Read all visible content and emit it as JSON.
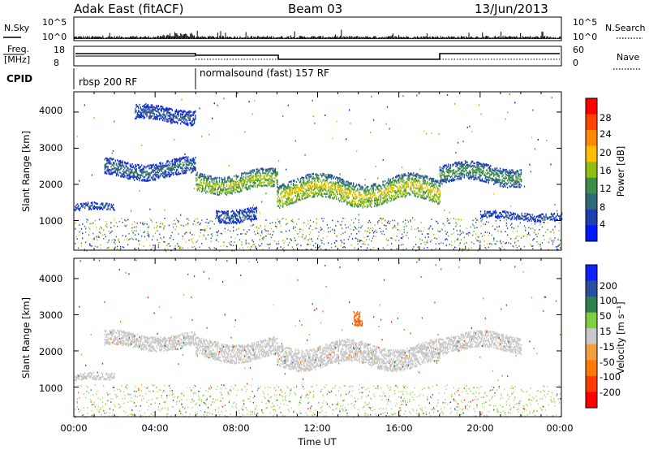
{
  "header": {
    "station": "Adak East (fitACF)",
    "beam": "Beam 03",
    "date": "13/Jun/2013"
  },
  "top_strip": {
    "left_label": "N.Sky",
    "left_ticks": [
      "10^5",
      "10^0"
    ],
    "right_ticks": [
      "10^5",
      "10^0"
    ],
    "right_label": "N.Search"
  },
  "freq_strip": {
    "left_label_line1": "Freq.",
    "left_label_line2": "[MHz]",
    "left_ticks": [
      "18",
      "8"
    ],
    "right_ticks": [
      "60",
      "0"
    ],
    "right_label": "Nave"
  },
  "cpid_strip": {
    "label": "CPID",
    "segments": [
      "rbsp 200 RF",
      "normalsound (fast) 157 RF"
    ]
  },
  "power_panel": {
    "ylabel": "Slant Range [km]",
    "yticks": [
      "4000",
      "3000",
      "2000",
      "1000"
    ],
    "colorbar_label": "Power [dB]",
    "colorbar_ticks": [
      "28",
      "24",
      "20",
      "16",
      "12",
      "8",
      "4"
    ],
    "colors": [
      "#0018ff",
      "#1f3fb0",
      "#2f6a78",
      "#3d8f48",
      "#8fc010",
      "#ffbf00",
      "#ff8a00",
      "#ff4400",
      "#ff0000"
    ]
  },
  "velocity_panel": {
    "ylabel": "Slant Range [km]",
    "yticks": [
      "4000",
      "3000",
      "2000",
      "1000"
    ],
    "colorbar_label": "Velocity [m s⁻¹]",
    "colorbar_ticks": [
      "200",
      "100",
      "50",
      "15",
      "-15",
      "-50",
      "-100",
      "-200"
    ],
    "colors": [
      "#1020ff",
      "#2b4fa0",
      "#2f8050",
      "#7fd040",
      "#c8c8c8",
      "#f0a040",
      "#ff7a00",
      "#ff3c00",
      "#ff0000"
    ]
  },
  "x_axis": {
    "ticks": [
      "00:00",
      "04:00",
      "08:00",
      "12:00",
      "16:00",
      "20:00",
      "00:00"
    ],
    "label": "Time UT"
  },
  "chart_data": [
    {
      "type": "heatmap",
      "title": "Adak East (fitACF)",
      "xlabel": "Time UT",
      "ylabel": "Slant Range [km]",
      "colorbar": "Power [dB]",
      "xlim_hours": [
        0,
        24
      ],
      "ylim_km": [
        180,
        4560
      ],
      "clim": [
        0,
        32
      ],
      "features": [
        {
          "start_h": 0.0,
          "end_h": 2.0,
          "center_km": 1380,
          "width_km": 200,
          "value": 8
        },
        {
          "start_h": 3.0,
          "end_h": 6.0,
          "center_km": 3950,
          "width_km": 400,
          "value": 8
        },
        {
          "start_h": 1.5,
          "end_h": 6.0,
          "center_km": 2450,
          "width_km": 450,
          "value": 10
        },
        {
          "start_h": 6.0,
          "end_h": 10.0,
          "center_km": 2100,
          "width_km": 500,
          "value": 18
        },
        {
          "start_h": 7.0,
          "end_h": 9.0,
          "center_km": 1200,
          "width_km": 350,
          "value": 8
        },
        {
          "start_h": 10.0,
          "end_h": 18.0,
          "center_km": 1850,
          "width_km": 650,
          "value": 20
        },
        {
          "start_h": 18.0,
          "end_h": 22.0,
          "center_km": 2300,
          "width_km": 500,
          "value": 14
        },
        {
          "start_h": 20.0,
          "end_h": 24.0,
          "center_km": 1150,
          "width_km": 200,
          "value": 8
        }
      ]
    },
    {
      "type": "heatmap",
      "xlabel": "Time UT",
      "ylabel": "Slant Range [km]",
      "colorbar": "Velocity [m s⁻¹]",
      "xlim_hours": [
        0,
        24
      ],
      "ylim_km": [
        180,
        4560
      ],
      "clim": [
        -250,
        250
      ],
      "features": [
        {
          "start_h": 0.0,
          "end_h": 2.0,
          "center_km": 1280,
          "width_km": 200,
          "value": 0
        },
        {
          "start_h": 1.5,
          "end_h": 6.0,
          "center_km": 2300,
          "width_km": 400,
          "value": 0
        },
        {
          "start_h": 6.0,
          "end_h": 10.0,
          "center_km": 2050,
          "width_km": 500,
          "value": 0
        },
        {
          "start_h": 10.0,
          "end_h": 18.0,
          "center_km": 1900,
          "width_km": 600,
          "value": 0
        },
        {
          "start_h": 13.8,
          "end_h": 14.2,
          "center_km": 2850,
          "width_km": 200,
          "value": -100
        },
        {
          "start_h": 18.0,
          "end_h": 22.0,
          "center_km": 2250,
          "width_km": 450,
          "value": 0
        }
      ]
    }
  ]
}
